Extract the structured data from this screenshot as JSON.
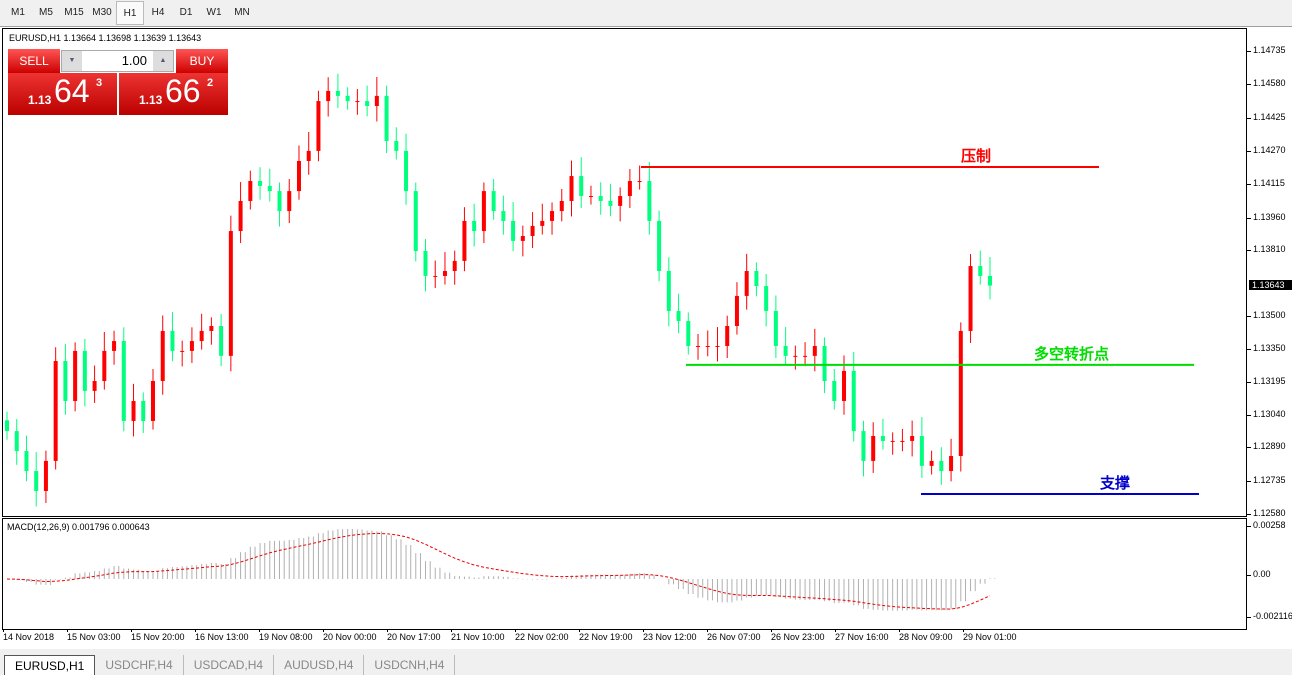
{
  "toolbar": {
    "timeframes": [
      "M1",
      "M5",
      "M15",
      "M30",
      "H1",
      "H4",
      "D1",
      "W1",
      "MN"
    ],
    "active": "H1"
  },
  "chart": {
    "title": "EURUSD,H1  1.13664 1.13698 1.13639 1.13643",
    "current_price": "1.13643",
    "price_labels": [
      "1.14735",
      "1.14580",
      "1.14425",
      "1.14270",
      "1.14115",
      "1.13960",
      "1.13810",
      "1.13500",
      "1.13350",
      "1.13195",
      "1.13040",
      "1.12890",
      "1.12735",
      "1.12580"
    ],
    "up_color": "#ff0000",
    "down_color": "#00ff7f"
  },
  "trade": {
    "sell": "SELL",
    "buy": "BUY",
    "lot": "1.00",
    "sell_prefix": "1.13",
    "sell_big": "64",
    "sell_sup": "3",
    "buy_prefix": "1.13",
    "buy_big": "66",
    "buy_sup": "2"
  },
  "levels": [
    {
      "label": "压制",
      "price": 1.14195,
      "color": "#ff0000"
    },
    {
      "label": "多空转折点",
      "price": 1.13274,
      "color": "#00dd00"
    },
    {
      "label": "支撑",
      "price": 1.12673,
      "color": "#0000cc"
    }
  ],
  "macd": {
    "label": "MACD(12,26,9) 0.001796 0.000643",
    "scale": [
      "0.00258",
      "0.00",
      "-0.002116"
    ]
  },
  "time_labels": [
    "14 Nov 2018",
    "15 Nov 03:00",
    "15 Nov 20:00",
    "16 Nov 13:00",
    "19 Nov 08:00",
    "20 Nov 00:00",
    "20 Nov 17:00",
    "21 Nov 10:00",
    "22 Nov 02:00",
    "22 Nov 19:00",
    "23 Nov 12:00",
    "26 Nov 07:00",
    "26 Nov 23:00",
    "27 Nov 16:00",
    "28 Nov 09:00",
    "29 Nov 01:00"
  ],
  "tabs": [
    "EURUSD,H1",
    "USDCHF,H4",
    "USDCAD,H4",
    "AUDUSD,H4",
    "USDCNH,H4"
  ],
  "chart_data": {
    "type": "candlestick",
    "symbol": "EURUSD",
    "timeframe": "H1",
    "ylim": [
      1.1258,
      1.14735
    ],
    "closes": [
      1.12966,
      1.12873,
      1.1278,
      1.12687,
      1.12827,
      1.13292,
      1.13106,
      1.13339,
      1.13153,
      1.13199,
      1.13339,
      1.13385,
      1.13013,
      1.13106,
      1.13013,
      1.13199,
      1.13432,
      1.13339,
      1.13339,
      1.13385,
      1.13432,
      1.13455,
      1.13316,
      1.13897,
      1.14037,
      1.1413,
      1.14107,
      1.14083,
      1.1399,
      1.14083,
      1.14223,
      1.1427,
      1.14502,
      1.14549,
      1.14526,
      1.14502,
      1.14502,
      1.14479,
      1.14526,
      1.14316,
      1.1427,
      1.14083,
      1.13804,
      1.13688,
      1.13688,
      1.13711,
      1.13758,
      1.13944,
      1.13897,
      1.14083,
      1.1399,
      1.13944,
      1.13851,
      1.13874,
      1.13921,
      1.13944,
      1.1399,
      1.14037,
      1.14153,
      1.1406,
      1.1406,
      1.14037,
      1.14014,
      1.1406,
      1.1413,
      1.1413,
      1.13944,
      1.13711,
      1.13525,
      1.13478,
      1.13362,
      1.13362,
      1.13362,
      1.13362,
      1.13455,
      1.13595,
      1.13711,
      1.13641,
      1.13525,
      1.13362,
      1.13316,
      1.13316,
      1.13316,
      1.13362,
      1.13199,
      1.13106,
      1.13246,
      1.12966,
      1.12827,
      1.12943,
      1.1292,
      1.1292,
      1.1292,
      1.12943,
      1.12804,
      1.12827,
      1.1278,
      1.1285,
      1.13432,
      1.13734,
      1.13688,
      1.13643
    ]
  }
}
